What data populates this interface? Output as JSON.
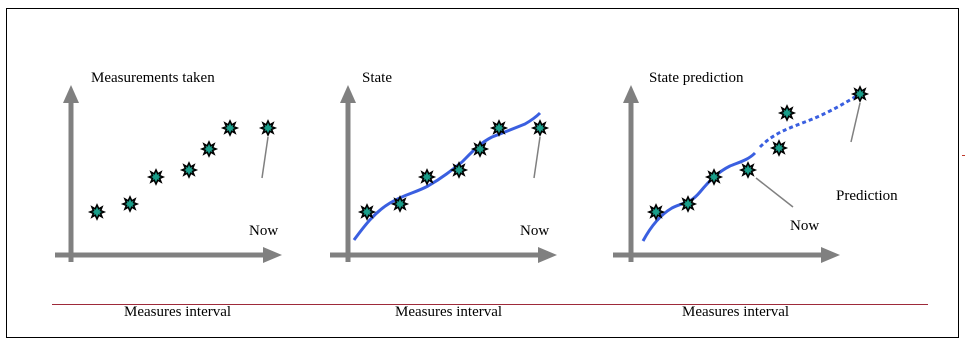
{
  "panels": [
    {
      "title": "Measurements taken",
      "now_label": "Now",
      "footer": "Measures interval"
    },
    {
      "title": "State",
      "now_label": "Now",
      "footer": "Measures interval"
    },
    {
      "title": "State prediction",
      "now_label": "Now",
      "prediction_label": "Prediction",
      "footer": "Measures interval"
    }
  ],
  "colors": {
    "axis": "#808080",
    "state_line": "#3a5fe0",
    "marker_fill": "#1a9e8a",
    "marker_outline": "#000000",
    "divider": "#9e2a3a",
    "leader": "#808080"
  },
  "icons": {
    "marker": "star-burst-marker-icon",
    "arrow": "arrow-head-icon"
  }
}
